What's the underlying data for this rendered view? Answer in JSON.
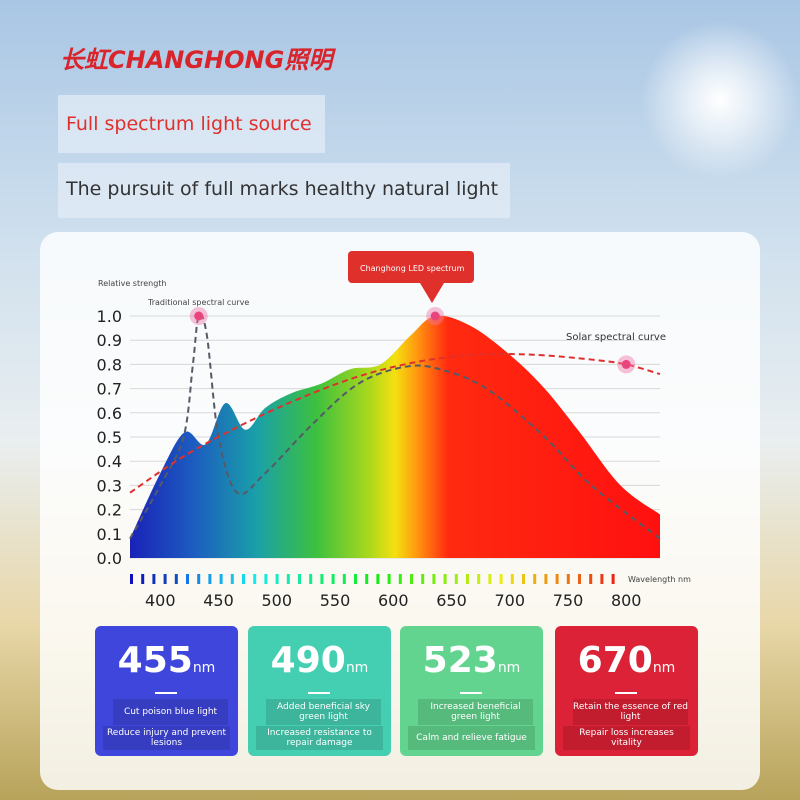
{
  "header": {
    "brand": "长虹CHANGHONG照明",
    "title": "Full spectrum light source",
    "subtitle": "The pursuit of full marks healthy natural light"
  },
  "chart_data": {
    "type": "line",
    "y_label": "Relative strength",
    "x_label": "Wavelength nm",
    "annotations": [
      "Traditional spectral curve",
      "Changhong LED spectrum",
      "Solar spectral curve"
    ],
    "xlim": [
      374,
      829
    ],
    "xticks": [
      400,
      450,
      500,
      550,
      600,
      650,
      700,
      750,
      800
    ],
    "ylim": [
      0,
      1
    ],
    "yticks": [
      {
        "value": 0,
        "label": "0.0"
      },
      0.1,
      0.2,
      0.3,
      0.4,
      0.5,
      0.6,
      0.7,
      0.8,
      0.9,
      {
        "value": 1,
        "label": "1.0"
      }
    ],
    "grid": true,
    "series": [
      {
        "name": "Changhong LED spectrum",
        "style": "area",
        "x": [
          374,
          400,
          421,
          439,
          456,
          473,
          490,
          512,
          538,
          563,
          589,
          615,
          636,
          666,
          700,
          730,
          760,
          795,
          829
        ],
        "values": [
          0.08,
          0.35,
          0.52,
          0.47,
          0.64,
          0.53,
          0.62,
          0.68,
          0.72,
          0.78,
          0.8,
          0.92,
          1.0,
          0.96,
          0.84,
          0.7,
          0.52,
          0.3,
          0.18
        ]
      },
      {
        "name": "Traditional spectral curve",
        "color": "#555a66",
        "style": "dashed",
        "x": [
          374,
          400,
          420,
          428,
          433,
          440,
          450,
          466,
          490,
          530,
          570,
          610,
          640,
          680,
          730,
          770,
          829
        ],
        "values": [
          0.08,
          0.3,
          0.5,
          0.8,
          1.0,
          0.92,
          0.5,
          0.27,
          0.35,
          0.55,
          0.72,
          0.79,
          0.78,
          0.7,
          0.5,
          0.3,
          0.08
        ]
      },
      {
        "name": "Solar spectral curve",
        "color": "#e0302c",
        "style": "dashed",
        "x": [
          374,
          420,
          470,
          520,
          570,
          620,
          670,
          720,
          770,
          800,
          829
        ],
        "values": [
          0.27,
          0.42,
          0.55,
          0.66,
          0.75,
          0.81,
          0.84,
          0.84,
          0.82,
          0.8,
          0.76
        ]
      }
    ]
  },
  "cards": [
    {
      "value": 455,
      "unit": "nm",
      "line1": "Cut poison blue light",
      "line2": "Reduce injury and prevent lesions",
      "color": "#3f46dc"
    },
    {
      "value": 490,
      "unit": "nm",
      "line1": "Added beneficial sky green light",
      "line2": "Increased resistance to repair damage",
      "color": "#45cfb2"
    },
    {
      "value": 523,
      "unit": "nm",
      "line1": "Increased beneficial green light",
      "line2": "Calm and relieve fatigue",
      "color": "#63d48f"
    },
    {
      "value": 670,
      "unit": "nm",
      "line1": "Retain the essence of red light",
      "line2": "Repair loss increases vitality",
      "color": "#dc2236"
    }
  ]
}
